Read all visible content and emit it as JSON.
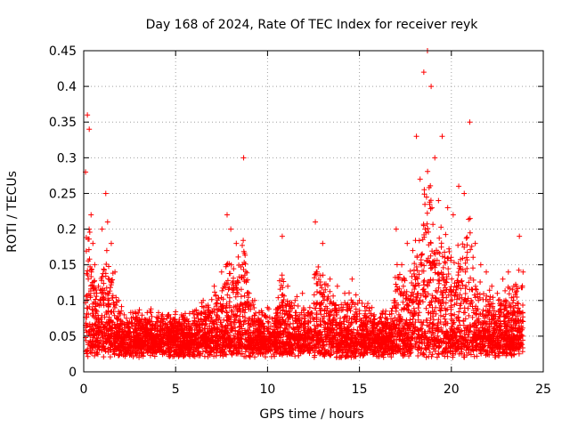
{
  "chart_data": {
    "type": "scatter",
    "title": "Day 168 of 2024, Rate Of TEC Index for receiver reyk",
    "xlabel": "GPS time / hours",
    "ylabel": "ROTI / TECUs",
    "xlim": [
      0,
      25
    ],
    "ylim": [
      0,
      0.45
    ],
    "xticks": [
      0,
      5,
      10,
      15,
      20,
      25
    ],
    "xtick_labels": [
      "0",
      "5",
      "10",
      "15",
      "20",
      "25"
    ],
    "yticks": [
      0,
      0.05,
      0.1,
      0.15,
      0.2,
      0.25,
      0.3,
      0.35,
      0.4,
      0.45
    ],
    "ytick_labels": [
      "0",
      "0.05",
      "0.1",
      "0.15",
      "0.2",
      "0.25",
      "0.3",
      "0.35",
      "0.4",
      "0.45"
    ],
    "grid": true,
    "marker": "+",
    "series": [
      {
        "name": "ROTI",
        "color": "#ff0000",
        "x": [
          0.1,
          0.2,
          0.3,
          0.4,
          0.5,
          0.6,
          0.8,
          1.0,
          1.2,
          1.3,
          1.5,
          1.7,
          1.9,
          2.2,
          2.5,
          2.8,
          3.1,
          3.4,
          3.7,
          4.0,
          4.3,
          4.6,
          4.9,
          5.2,
          5.5,
          5.8,
          6.2,
          6.5,
          6.8,
          7.1,
          7.5,
          7.8,
          8.0,
          8.3,
          8.7,
          9.0,
          9.3,
          9.7,
          10.0,
          10.4,
          10.8,
          11.1,
          11.5,
          11.9,
          12.3,
          12.6,
          13.0,
          13.4,
          13.8,
          14.2,
          14.6,
          15.0,
          15.4,
          15.8,
          16.2,
          16.6,
          17.0,
          17.3,
          17.6,
          17.9,
          18.1,
          18.3,
          18.5,
          18.7,
          18.9,
          19.1,
          19.3,
          19.5,
          19.8,
          20.1,
          20.4,
          20.7,
          21.0,
          21.3,
          21.6,
          21.9,
          22.2,
          22.5,
          22.8,
          23.1,
          23.4,
          23.7,
          23.9
        ],
        "y": [
          0.28,
          0.36,
          0.34,
          0.22,
          0.18,
          0.15,
          0.12,
          0.2,
          0.25,
          0.21,
          0.18,
          0.14,
          0.1,
          0.08,
          0.07,
          0.06,
          0.04,
          0.05,
          0.06,
          0.05,
          0.07,
          0.08,
          0.06,
          0.07,
          0.05,
          0.06,
          0.08,
          0.1,
          0.09,
          0.12,
          0.14,
          0.22,
          0.2,
          0.18,
          0.3,
          0.11,
          0.1,
          0.08,
          0.09,
          0.07,
          0.19,
          0.12,
          0.1,
          0.11,
          0.09,
          0.21,
          0.18,
          0.13,
          0.12,
          0.11,
          0.13,
          0.1,
          0.09,
          0.08,
          0.07,
          0.06,
          0.2,
          0.15,
          0.18,
          0.17,
          0.33,
          0.27,
          0.42,
          0.45,
          0.4,
          0.3,
          0.24,
          0.33,
          0.23,
          0.22,
          0.26,
          0.25,
          0.35,
          0.18,
          0.15,
          0.14,
          0.12,
          0.11,
          0.13,
          0.14,
          0.12,
          0.19,
          0.14
        ]
      }
    ]
  }
}
